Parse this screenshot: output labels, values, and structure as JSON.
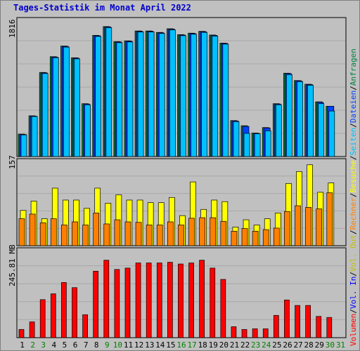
{
  "title": "Tages-Statistik im Monat April 2022",
  "colors": {
    "background": "#c0c0c0",
    "title": "#0000cc",
    "anfragen": "#008040",
    "dateien": "#0040ff",
    "seiten": "#00c0ff",
    "besuche": "#ffff00",
    "rechner": "#ff8000",
    "vol_out": "#c0c000",
    "vol_in": "#0000ff",
    "volumen": "#ff0000",
    "weekday_label": "#000000",
    "weekend_label": "#008000"
  },
  "legend_right": {
    "anfragen": "Anfragen",
    "sep1": "/",
    "dateien": "Dateien",
    "sep2": "/",
    "seiten": "Seiten",
    "sep3": "/",
    "besuche": "Besuche",
    "sep4": "/",
    "rechner": "Rechner",
    "sep5": "/",
    "vol_out": "Vol. Out",
    "sep6": "/",
    "vol_in": "Vol. In",
    "sep7": "/",
    "volumen": "Volumen"
  },
  "chart_data": [
    {
      "type": "bar",
      "panel": "top",
      "max_label": "1816",
      "ylim": [
        0,
        1816
      ],
      "categories": [
        "1",
        "2",
        "3",
        "4",
        "5",
        "6",
        "7",
        "8",
        "9",
        "10",
        "11",
        "12",
        "13",
        "14",
        "15",
        "16",
        "17",
        "18",
        "19",
        "20",
        "21",
        "22",
        "23",
        "24",
        "25",
        "26",
        "27",
        "28",
        "29",
        "30",
        "31"
      ],
      "weekend_days": [
        "2",
        "3",
        "9",
        "10",
        "16",
        "17",
        "23",
        "24",
        "30",
        "31"
      ],
      "series": [
        {
          "name": "Anfragen",
          "values": [
            305,
            555,
            1145,
            1360,
            1505,
            1345,
            720,
            1650,
            1770,
            1565,
            1575,
            1710,
            1710,
            1690,
            1740,
            1660,
            1680,
            1705,
            1655,
            1545,
            490,
            420,
            320,
            395,
            720,
            1135,
            1035,
            985,
            745,
            685,
            0
          ]
        },
        {
          "name": "Dateien",
          "values": [
            300,
            550,
            1140,
            1355,
            1500,
            1340,
            715,
            1645,
            1765,
            1560,
            1570,
            1705,
            1705,
            1685,
            1735,
            1655,
            1675,
            1700,
            1650,
            1540,
            485,
            410,
            315,
            390,
            715,
            1130,
            1030,
            980,
            740,
            685,
            0
          ]
        },
        {
          "name": "Seiten",
          "values": [
            295,
            545,
            1130,
            1345,
            1490,
            1330,
            705,
            1635,
            1755,
            1550,
            1560,
            1695,
            1695,
            1675,
            1725,
            1645,
            1665,
            1690,
            1640,
            1530,
            475,
            315,
            310,
            350,
            705,
            1115,
            1020,
            970,
            720,
            620,
            0
          ]
        }
      ]
    },
    {
      "type": "bar",
      "panel": "middle",
      "max_label": "157",
      "ylim": [
        0,
        157
      ],
      "categories": [
        "1",
        "2",
        "3",
        "4",
        "5",
        "6",
        "7",
        "8",
        "9",
        "10",
        "11",
        "12",
        "13",
        "14",
        "15",
        "16",
        "17",
        "18",
        "19",
        "20",
        "21",
        "22",
        "23",
        "24",
        "25",
        "26",
        "27",
        "28",
        "29",
        "30",
        "31"
      ],
      "series": [
        {
          "name": "Besuche",
          "values": [
            68,
            86,
            52,
            111,
            88,
            88,
            72,
            111,
            82,
            98,
            88,
            88,
            83,
            83,
            93,
            58,
            123,
            70,
            88,
            85,
            36,
            50,
            40,
            52,
            63,
            120,
            143,
            156,
            103,
            121,
            0
          ]
        },
        {
          "name": "Rechner",
          "values": [
            52,
            61,
            44,
            52,
            40,
            46,
            40,
            63,
            42,
            50,
            46,
            45,
            40,
            40,
            46,
            40,
            53,
            54,
            54,
            47,
            28,
            33,
            28,
            31,
            34,
            66,
            77,
            74,
            71,
            102,
            0
          ]
        }
      ]
    },
    {
      "type": "bar",
      "panel": "bottom",
      "max_label": "245.81 MB",
      "ylim": [
        0,
        245.81
      ],
      "categories": [
        "1",
        "2",
        "3",
        "4",
        "5",
        "6",
        "7",
        "8",
        "9",
        "10",
        "11",
        "12",
        "13",
        "14",
        "15",
        "16",
        "17",
        "18",
        "19",
        "20",
        "21",
        "22",
        "23",
        "24",
        "25",
        "26",
        "27",
        "28",
        "29",
        "30",
        "31"
      ],
      "series": [
        {
          "name": "Volumen",
          "values": [
            24,
            46,
            111,
            128,
            161,
            146,
            67,
            194,
            226,
            199,
            203,
            218,
            218,
            218,
            220,
            215,
            218,
            226,
            203,
            170,
            32,
            24,
            26,
            26,
            65,
            110,
            94,
            94,
            62,
            59,
            0
          ]
        }
      ]
    }
  ]
}
